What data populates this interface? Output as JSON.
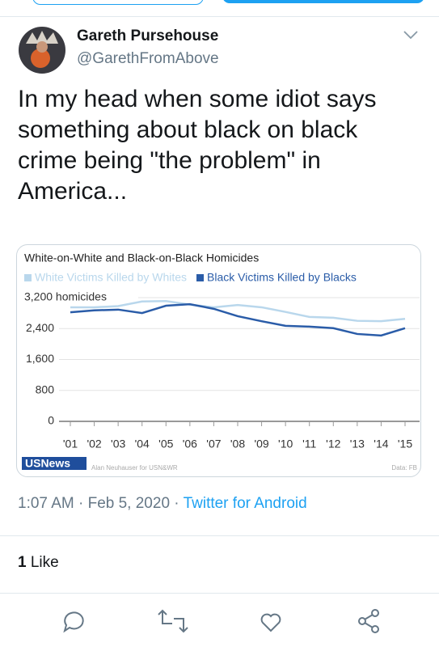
{
  "tweet": {
    "name": "Gareth Pursehouse",
    "handle": "@GarethFromAbove",
    "text": "In my head when some idiot says something about black on black crime being \"the problem\" in America...",
    "timestamp": "1:07 AM · Feb 5, 2020 ·",
    "source": "Twitter for Android",
    "like_count": "1",
    "like_label": "Like"
  },
  "chart_data": {
    "type": "line",
    "title": "White-on-White and Black-on-Black Homicides",
    "categories": [
      "'01",
      "'02",
      "'03",
      "'04",
      "'05",
      "'06",
      "'07",
      "'08",
      "'09",
      "'10",
      "'11",
      "'12",
      "'13",
      "'14",
      "'15"
    ],
    "series": [
      {
        "name": "White Victims Killed by Whites",
        "color": "#b9d7ec",
        "values": [
          2950,
          2950,
          2980,
          3100,
          3110,
          3020,
          2950,
          3010,
          2950,
          2830,
          2700,
          2680,
          2600,
          2590,
          2650
        ]
      },
      {
        "name": "Black Victims Killed by Blacks",
        "color": "#2a5ca8",
        "values": [
          2820,
          2870,
          2890,
          2800,
          2990,
          3030,
          2910,
          2720,
          2590,
          2470,
          2450,
          2410,
          2260,
          2220,
          2410
        ]
      }
    ],
    "ylim": [
      0,
      3200
    ],
    "yticks": [
      0,
      800,
      {
        "value": 1600,
        "label": "1,600"
      },
      {
        "value": 2400,
        "label": "2,400"
      },
      {
        "value": 3200,
        "label": "3,200 homicides"
      }
    ],
    "grid": true,
    "legend": "top",
    "logo": "USNews",
    "credit": "Alan Neuhauser for USN&WR",
    "source": "Data: FB"
  }
}
